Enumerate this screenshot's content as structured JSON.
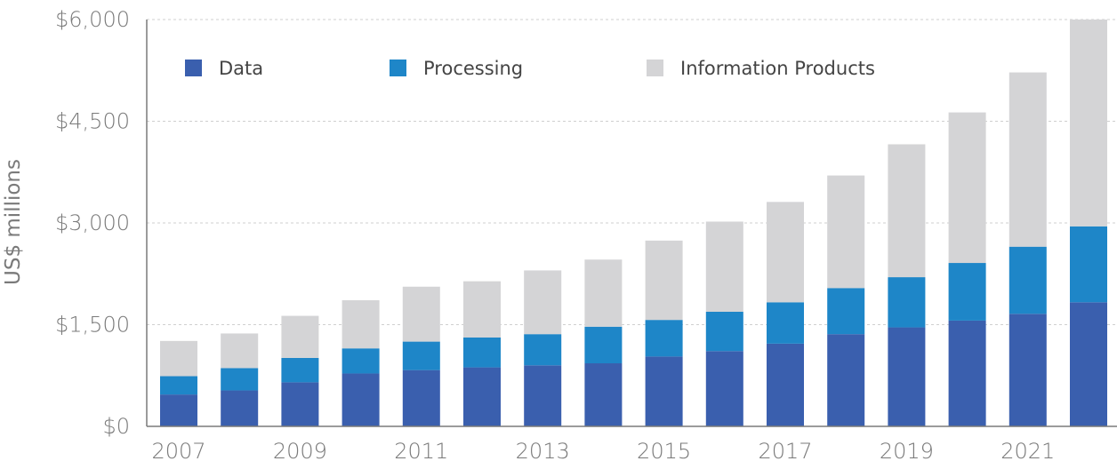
{
  "chart_data": {
    "type": "bar",
    "stacked": true,
    "title": "",
    "xlabel": "",
    "ylabel": "US$ millions",
    "ylim": [
      0,
      6000
    ],
    "yticks": [
      0,
      1500,
      3000,
      4500,
      6000
    ],
    "ytick_labels": [
      "$0",
      "$1,500",
      "$3,000",
      "$4,500",
      "$6,000"
    ],
    "categories": [
      "2007",
      "2008",
      "2009",
      "2010",
      "2011",
      "2012",
      "2013",
      "2014",
      "2015",
      "2016",
      "2017",
      "2018",
      "2019",
      "2020",
      "2021",
      "2022"
    ],
    "xtick_labels": [
      "2007",
      "",
      "2009",
      "",
      "2011",
      "",
      "2013",
      "",
      "2015",
      "",
      "2017",
      "",
      "2019",
      "",
      "2021",
      ""
    ],
    "grid": true,
    "legend_position": "top-left",
    "series": [
      {
        "name": "Data",
        "color": "#3a5fae",
        "values": [
          470,
          530,
          650,
          780,
          830,
          870,
          900,
          930,
          1030,
          1110,
          1220,
          1360,
          1460,
          1560,
          1660,
          1830
        ]
      },
      {
        "name": "Processing",
        "color": "#1e86c8",
        "values": [
          270,
          330,
          360,
          370,
          420,
          440,
          460,
          540,
          540,
          580,
          610,
          680,
          740,
          850,
          990,
          1120
        ]
      },
      {
        "name": "Information Products",
        "color": "#d4d4d6",
        "values": [
          520,
          510,
          620,
          710,
          810,
          830,
          940,
          990,
          1170,
          1330,
          1480,
          1660,
          1960,
          2220,
          2570,
          3050
        ]
      }
    ]
  }
}
